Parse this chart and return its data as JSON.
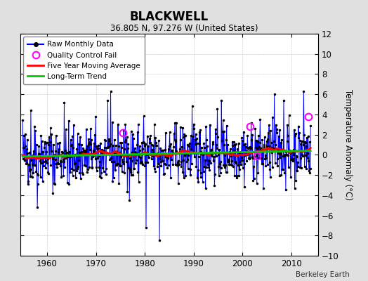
{
  "title": "BLACKWELL",
  "subtitle": "36.805 N, 97.276 W (United States)",
  "ylabel": "Temperature Anomaly (°C)",
  "watermark": "Berkeley Earth",
  "ylim": [
    -10,
    12
  ],
  "yticks": [
    -10,
    -8,
    -6,
    -4,
    -2,
    0,
    2,
    4,
    6,
    8,
    10,
    12
  ],
  "xlim": [
    1954.5,
    2015.5
  ],
  "xticks": [
    1960,
    1970,
    1980,
    1990,
    2000,
    2010
  ],
  "start_year": 1955,
  "end_year": 2014,
  "raw_color": "#0000FF",
  "moving_avg_color": "#FF0000",
  "trend_color": "#00CC00",
  "qc_fail_color": "#FF00FF",
  "dot_color": "#000000",
  "bg_color": "#E0E0E0",
  "plot_bg_color": "#FFFFFF",
  "legend_labels": [
    "Raw Monthly Data",
    "Quality Control Fail",
    "Five Year Moving Average",
    "Long-Term Trend"
  ],
  "seed": 42
}
